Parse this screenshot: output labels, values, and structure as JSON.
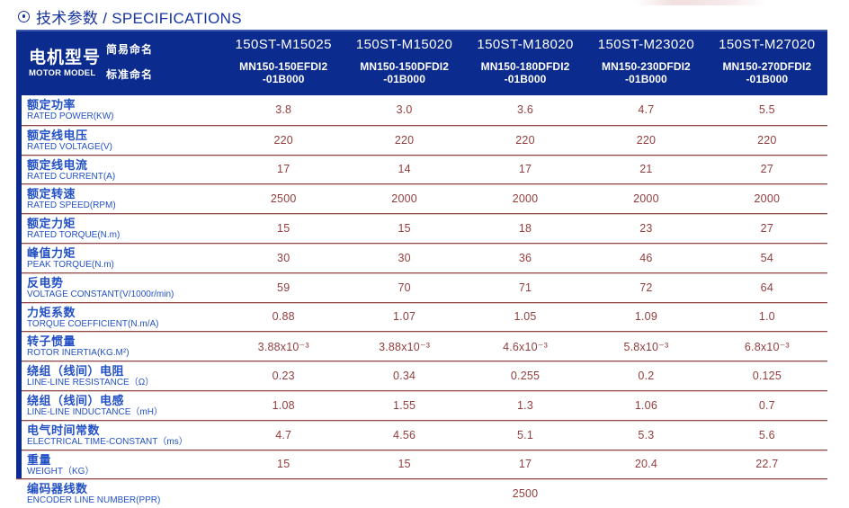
{
  "title": {
    "text": "技术参数 / SPECIFICATIONS"
  },
  "table": {
    "header": {
      "motor_model_zh": "电机型号",
      "motor_model_en": "MOTOR MODEL",
      "simple_name_label": "简易命名",
      "standard_name_label": "标准命名",
      "columns": [
        {
          "simple": "150ST-M15025",
          "standard_line1": "MN150-150EFDI2",
          "standard_line2": "-01B000"
        },
        {
          "simple": "150ST-M15020",
          "standard_line1": "MN150-150DFDI2",
          "standard_line2": "-01B000"
        },
        {
          "simple": "150ST-M18020",
          "standard_line1": "MN150-180DFDI2",
          "standard_line2": "-01B000"
        },
        {
          "simple": "150ST-M23020",
          "standard_line1": "MN150-230DFDI2",
          "standard_line2": "-01B000"
        },
        {
          "simple": "150ST-M27020",
          "standard_line1": "MN150-270DFDI2",
          "standard_line2": "-01B000"
        }
      ]
    },
    "rows": [
      {
        "zh": "额定功率",
        "en": "RATED POWER(KW)",
        "values": [
          "3.8",
          "3.0",
          "3.6",
          "4.7",
          "5.5"
        ]
      },
      {
        "zh": "额定线电压",
        "en": "RATED VOLTAGE(V)",
        "values": [
          "220",
          "220",
          "220",
          "220",
          "220"
        ]
      },
      {
        "zh": "额定线电流",
        "en": "RATED CURRENT(A)",
        "values": [
          "17",
          "14",
          "17",
          "21",
          "27"
        ]
      },
      {
        "zh": "额定转速",
        "en": "RATED SPEED(RPM)",
        "values": [
          "2500",
          "2000",
          "2000",
          "2000",
          "2000"
        ]
      },
      {
        "zh": "额定力矩",
        "en": "RATED TORQUE(N.m)",
        "values": [
          "15",
          "15",
          "18",
          "23",
          "27"
        ]
      },
      {
        "zh": "峰值力矩",
        "en": "PEAK TORQUE(N.m)",
        "values": [
          "30",
          "30",
          "36",
          "46",
          "54"
        ]
      },
      {
        "zh": "反电势",
        "en": "VOLTAGE CONSTANT(V/1000r/min)",
        "values": [
          "59",
          "70",
          "71",
          "72",
          "64"
        ]
      },
      {
        "zh": "力矩系数",
        "en": "TORQUE COEFFICIENT(N.m/A)",
        "values": [
          "0.88",
          "1.07",
          "1.05",
          "1.09",
          "1.0"
        ]
      },
      {
        "zh": "转子惯量",
        "en": "ROTOR INERTIA(KG.M²)",
        "values": [
          "3.88x10⁻³",
          "3.88x10⁻³",
          "4.6x10⁻³",
          "5.8x10⁻³",
          "6.8x10⁻³"
        ]
      },
      {
        "zh": "绕组（线间）电阻",
        "en": "LINE-LINE RESISTANCE（Ω）",
        "values": [
          "0.23",
          "0.34",
          "0.255",
          "0.2",
          "0.125"
        ]
      },
      {
        "zh": "绕组（线间）电感",
        "en": "LINE-LINE INDUCTANCE（mH）",
        "values": [
          "1.08",
          "1.55",
          "1.3",
          "1.06",
          "0.7"
        ]
      },
      {
        "zh": "电气时间常数",
        "en": "ELECTRICAL TIME-CONSTANT（ms）",
        "values": [
          "4.7",
          "4.56",
          "5.1",
          "5.3",
          "5.6"
        ]
      },
      {
        "zh": "重量",
        "en": "WEIGHT（KG）",
        "values": [
          "15",
          "15",
          "17",
          "20.4",
          "22.7"
        ]
      }
    ],
    "encoder_row": {
      "zh": "编码器线数",
      "en": "ENCODER LINE NUMBER(PPR)",
      "value": "2500"
    }
  },
  "colors": {
    "header_navy": "#0b2b8e",
    "label_blue": "#2351c5",
    "value_maroon": "#943d3d",
    "title_blue": "#16349e",
    "separator_dark": "#8f4747",
    "separator_light": "#e3c8c8"
  }
}
